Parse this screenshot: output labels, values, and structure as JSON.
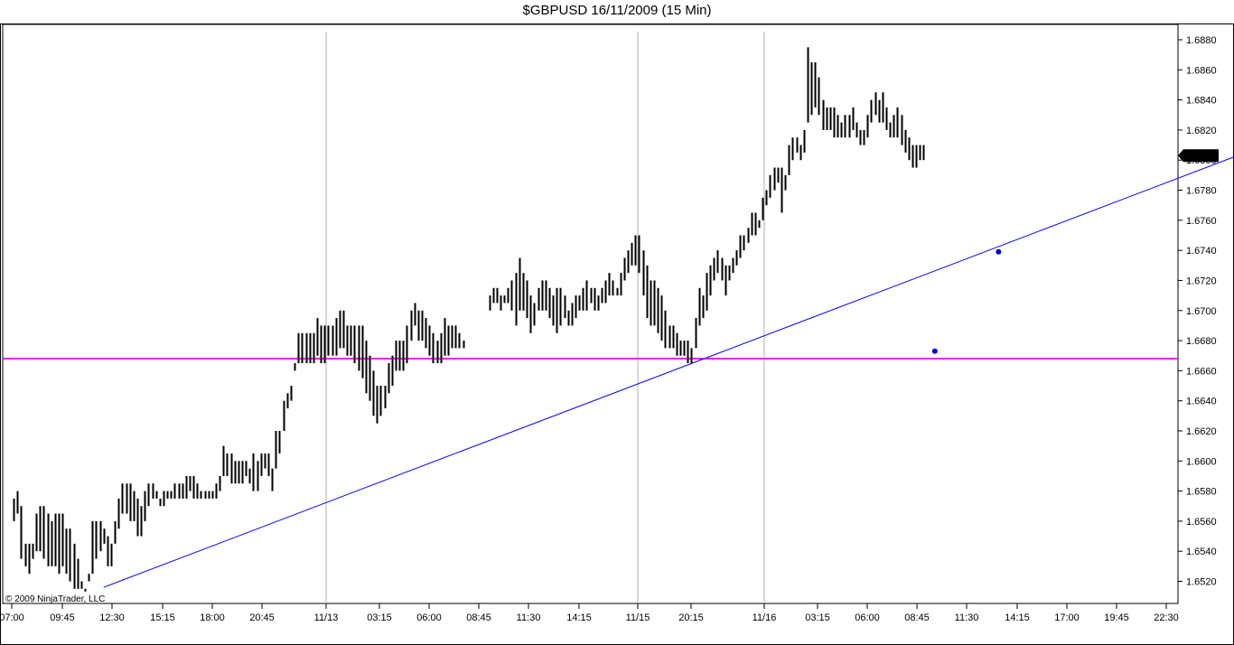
{
  "chart_data": {
    "type": "ohlc",
    "title": "$GBPUSD  16/11/2009 (15 Min)",
    "copyright": "© 2009 NinjaTrader, LLC",
    "last_price_label": "1.6803",
    "ylim": [
      1.6508,
      1.6888
    ],
    "y_ticks": [
      "1.6880",
      "1.6860",
      "1.6840",
      "1.6820",
      "1.6800",
      "1.6780",
      "1.6760",
      "1.6740",
      "1.6720",
      "1.6700",
      "1.6680",
      "1.6660",
      "1.6640",
      "1.6620",
      "1.6600",
      "1.6580",
      "1.6560",
      "1.6540",
      "1.6520"
    ],
    "x_ticks": [
      "07:00",
      "09:45",
      "12:30",
      "15:15",
      "18:00",
      "20:45",
      "11/13",
      "03:15",
      "06:00",
      "08:45",
      "11:30",
      "14:15",
      "11/15",
      "20:15",
      "11/16",
      "03:15",
      "06:00",
      "08:45",
      "11:30",
      "14:15",
      "17:00",
      "19:45",
      "22:30"
    ],
    "session_separators": [
      "11/13",
      "11/15",
      "11/16"
    ],
    "horizontal_line": {
      "price": 1.6668,
      "color": "#ff00ff"
    },
    "trend_line": {
      "from": {
        "bar": 24,
        "price": 1.6516
      },
      "to": {
        "bar": 324,
        "price": 1.6806
      },
      "color": "#0000ff"
    },
    "markers": [
      {
        "bar": 240,
        "price": 1.6673
      },
      {
        "bar": 257,
        "price": 1.6739
      }
    ],
    "bars": [
      {
        "seg": 0,
        "h": [
          1.6575,
          1.658,
          1.657,
          1.6545,
          1.6545,
          1.6545,
          1.6565,
          1.657,
          1.657,
          1.6565,
          1.656,
          1.6565,
          1.6565,
          1.6565,
          1.6555,
          1.6555,
          1.6545,
          1.6535,
          1.652,
          1.6515,
          1.6525,
          1.656,
          1.656,
          1.656,
          1.6555,
          1.655,
          1.6545,
          1.656,
          1.6575,
          1.6585,
          1.6585,
          1.6585,
          1.658,
          1.6575,
          1.657,
          1.658,
          1.6585,
          1.6585,
          1.658,
          1.6575,
          1.658,
          1.658,
          1.658,
          1.6585,
          1.6585,
          1.6585,
          1.659,
          1.659,
          1.659,
          1.6585,
          1.658,
          1.658,
          1.658,
          1.658,
          1.6585,
          1.659,
          1.661,
          1.6605,
          1.6605,
          1.66,
          1.66,
          1.66,
          1.66,
          1.6595,
          1.6605,
          1.66,
          1.6605,
          1.6605,
          1.6605,
          1.6595,
          1.662,
          1.662,
          1.664,
          1.6645,
          1.665,
          1.6665,
          1.6685,
          1.6685,
          1.6685,
          1.6685,
          1.6685,
          1.6695,
          1.669,
          1.669,
          1.669,
          1.669,
          1.6695,
          1.67,
          1.67,
          1.669,
          1.669,
          1.669,
          1.669,
          1.669,
          1.668,
          1.667,
          1.666,
          1.665,
          1.665,
          1.665,
          1.6665,
          1.667,
          1.668,
          1.668,
          1.668,
          1.669,
          1.67,
          1.6705,
          1.67,
          1.67,
          1.6695,
          1.669,
          1.6685,
          1.668,
          1.6685,
          1.6695,
          1.669,
          1.669,
          1.669,
          1.6685,
          1.668
        ],
        "l": [
          1.656,
          1.6565,
          1.6535,
          1.653,
          1.6525,
          1.6535,
          1.654,
          1.654,
          1.6535,
          1.653,
          1.653,
          1.653,
          1.6525,
          1.653,
          1.6525,
          1.652,
          1.6515,
          1.6515,
          1.6515,
          1.6515,
          1.652,
          1.6525,
          1.6535,
          1.654,
          1.6545,
          1.653,
          1.653,
          1.6545,
          1.6555,
          1.6565,
          1.6565,
          1.656,
          1.656,
          1.655,
          1.655,
          1.656,
          1.657,
          1.6575,
          1.6575,
          1.657,
          1.657,
          1.6575,
          1.6575,
          1.6575,
          1.6575,
          1.6575,
          1.6575,
          1.658,
          1.6575,
          1.6575,
          1.6575,
          1.6575,
          1.6575,
          1.6575,
          1.6575,
          1.658,
          1.659,
          1.659,
          1.6585,
          1.6585,
          1.6585,
          1.6585,
          1.659,
          1.6585,
          1.658,
          1.658,
          1.659,
          1.6595,
          1.659,
          1.658,
          1.6595,
          1.6605,
          1.662,
          1.6635,
          1.664,
          1.666,
          1.6665,
          1.6665,
          1.6665,
          1.6665,
          1.6665,
          1.667,
          1.6665,
          1.6665,
          1.667,
          1.667,
          1.667,
          1.6675,
          1.6675,
          1.667,
          1.667,
          1.6665,
          1.666,
          1.6655,
          1.6645,
          1.664,
          1.663,
          1.6625,
          1.663,
          1.6635,
          1.6645,
          1.665,
          1.666,
          1.666,
          1.666,
          1.6665,
          1.668,
          1.669,
          1.668,
          1.668,
          1.6675,
          1.667,
          1.6665,
          1.6665,
          1.6665,
          1.667,
          1.667,
          1.6675,
          1.6675,
          1.6675,
          1.6675
        ]
      },
      {
        "seg": 1,
        "h": [
          1.671,
          1.6715,
          1.6715,
          1.671,
          1.671,
          1.6715,
          1.672,
          1.6725,
          1.6735,
          1.6725,
          1.672,
          1.671,
          1.6705,
          1.6715,
          1.672,
          1.672,
          1.6715,
          1.671,
          1.6715,
          1.6715,
          1.671,
          1.67,
          1.6705,
          1.671,
          1.671,
          1.6715,
          1.672,
          1.6715,
          1.6715,
          1.671,
          1.6715,
          1.672,
          1.6725,
          1.672,
          1.6715,
          1.6725,
          1.6735,
          1.674,
          1.6745,
          1.675,
          1.675,
          1.674,
          1.673,
          1.672,
          1.672,
          1.6715,
          1.671,
          1.67,
          1.669,
          1.669,
          1.6685,
          1.668,
          1.668,
          1.668,
          1.6675,
          1.6695,
          1.6715,
          1.671,
          1.6725,
          1.673,
          1.6735,
          1.674,
          1.6735,
          1.673,
          1.673,
          1.6735,
          1.674,
          1.675,
          1.675,
          1.6755,
          1.6765,
          1.6765,
          1.676,
          1.6775,
          1.678,
          1.679,
          1.6795,
          1.6795,
          1.6795,
          1.679,
          1.681,
          1.6815,
          1.6815,
          1.681,
          1.682,
          1.6875,
          1.6865,
          1.6865,
          1.6855,
          1.684,
          1.6835,
          1.6835,
          1.6835,
          1.683,
          1.6825,
          1.683,
          1.683,
          1.6835,
          1.6825,
          1.682,
          1.682,
          1.683,
          1.684,
          1.6845,
          1.684,
          1.6845,
          1.6835,
          1.6825,
          1.683,
          1.6835,
          1.683,
          1.682,
          1.6815,
          1.681,
          1.681,
          1.681,
          1.681
        ],
        "l": [
          1.67,
          1.6705,
          1.6705,
          1.67,
          1.6705,
          1.6705,
          1.67,
          1.669,
          1.67,
          1.67,
          1.6695,
          1.6685,
          1.669,
          1.67,
          1.67,
          1.67,
          1.6695,
          1.669,
          1.6685,
          1.669,
          1.6695,
          1.669,
          1.669,
          1.6695,
          1.67,
          1.67,
          1.67,
          1.6705,
          1.67,
          1.67,
          1.6705,
          1.6705,
          1.671,
          1.671,
          1.671,
          1.671,
          1.672,
          1.6725,
          1.673,
          1.673,
          1.6725,
          1.671,
          1.6695,
          1.669,
          1.669,
          1.6685,
          1.668,
          1.6675,
          1.6675,
          1.6675,
          1.667,
          1.667,
          1.667,
          1.6665,
          1.6665,
          1.6675,
          1.669,
          1.6695,
          1.67,
          1.671,
          1.672,
          1.6725,
          1.672,
          1.671,
          1.672,
          1.6725,
          1.673,
          1.6735,
          1.674,
          1.6745,
          1.675,
          1.675,
          1.6755,
          1.676,
          1.677,
          1.6775,
          1.678,
          1.6785,
          1.6765,
          1.678,
          1.679,
          1.68,
          1.6805,
          1.68,
          1.6805,
          1.6825,
          1.683,
          1.6835,
          1.683,
          1.682,
          1.682,
          1.682,
          1.6815,
          1.6815,
          1.6815,
          1.6815,
          1.6815,
          1.682,
          1.6815,
          1.681,
          1.681,
          1.6815,
          1.6825,
          1.683,
          1.6825,
          1.6825,
          1.682,
          1.6815,
          1.6815,
          1.6815,
          1.681,
          1.6805,
          1.68,
          1.6795,
          1.6795,
          1.68,
          1.68
        ]
      }
    ]
  }
}
